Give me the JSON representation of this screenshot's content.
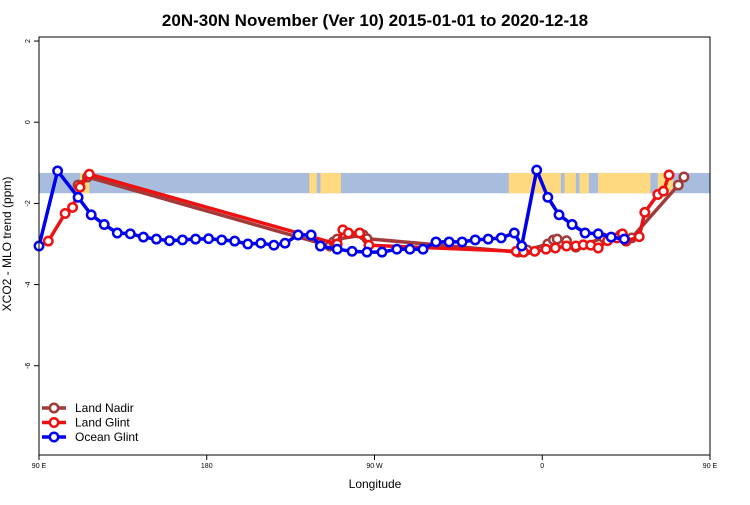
{
  "chart_data": {
    "type": "line",
    "title": "20N-30N November (Ver 10)   2015-01-01 to 2020-12-18",
    "xlabel": "Longitude",
    "ylabel": "XCO2 - MLO trend (ppm)",
    "xlim": [
      90,
      450
    ],
    "ylim": [
      -8.2,
      2.1
    ],
    "xticks": [
      {
        "value": 90,
        "label": "90 E"
      },
      {
        "value": 180,
        "label": "180"
      },
      {
        "value": 270,
        "label": "90 W"
      },
      {
        "value": 360,
        "label": "0"
      },
      {
        "value": 450,
        "label": "90 E"
      },
      {
        "value": 540,
        "label": "180"
      }
    ],
    "yticks": [
      {
        "value": 2,
        "label": "2"
      },
      {
        "value": 0,
        "label": "0"
      },
      {
        "value": -2,
        "label": "-2"
      },
      {
        "value": -4,
        "label": "-4"
      },
      {
        "value": -6,
        "label": "-6"
      }
    ],
    "map_band": {
      "ymin": -1.75,
      "ymax": -1.25,
      "ocean_color": "#a8bddd",
      "land_color": "#ffd980",
      "land_segments": [
        [
          112,
          117
        ],
        [
          235,
          239
        ],
        [
          241,
          252
        ],
        [
          342,
          370
        ],
        [
          372,
          378
        ],
        [
          380,
          385
        ],
        [
          390,
          418
        ],
        [
          422,
          430
        ]
      ]
    },
    "series": [
      {
        "name": "Land Nadir",
        "color": "#a33a3a",
        "points": [
          [
            111,
            -1.55
          ],
          [
            116,
            -1.35
          ],
          [
            246,
            -3.05
          ],
          [
            248,
            -2.95
          ],
          [
            250,
            -2.88
          ],
          [
            264,
            -2.78
          ],
          [
            266,
            -2.87
          ],
          [
            347,
            -3.2
          ],
          [
            352,
            -3.15
          ],
          [
            363,
            -3.0
          ],
          [
            366,
            -2.9
          ],
          [
            368,
            -2.88
          ],
          [
            373,
            -2.92
          ],
          [
            378,
            -3.08
          ],
          [
            393,
            -2.85
          ],
          [
            402,
            -2.78
          ],
          [
            405,
            -2.9
          ],
          [
            408,
            -2.85
          ],
          [
            433,
            -1.55
          ],
          [
            436,
            -1.35
          ]
        ]
      },
      {
        "name": "Land Glint",
        "color": "#ee1111",
        "points": [
          [
            95,
            -2.93
          ],
          [
            104,
            -2.25
          ],
          [
            108,
            -2.1
          ],
          [
            112,
            -1.6
          ],
          [
            117,
            -1.28
          ],
          [
            250,
            -3.0
          ],
          [
            253,
            -2.65
          ],
          [
            256,
            -2.73
          ],
          [
            262,
            -2.73
          ],
          [
            267,
            -3.03
          ],
          [
            346,
            -3.18
          ],
          [
            350,
            -3.2
          ],
          [
            356,
            -3.18
          ],
          [
            362,
            -3.13
          ],
          [
            367,
            -3.1
          ],
          [
            373,
            -3.05
          ],
          [
            378,
            -3.05
          ],
          [
            382,
            -3.02
          ],
          [
            386,
            -3.03
          ],
          [
            390,
            -3.1
          ],
          [
            395,
            -2.92
          ],
          [
            400,
            -2.85
          ],
          [
            403,
            -2.75
          ],
          [
            405,
            -2.93
          ],
          [
            412,
            -2.82
          ],
          [
            415,
            -2.22
          ],
          [
            422,
            -1.78
          ],
          [
            425,
            -1.7
          ],
          [
            428,
            -1.3
          ]
        ]
      },
      {
        "name": "Ocean Glint",
        "color": "#0000ee",
        "points": [
          [
            90,
            -3.05
          ],
          [
            100,
            -1.2
          ],
          [
            111,
            -1.85
          ],
          [
            118,
            -2.28
          ],
          [
            125,
            -2.52
          ],
          [
            132,
            -2.73
          ],
          [
            139,
            -2.75
          ],
          [
            146,
            -2.83
          ],
          [
            153,
            -2.88
          ],
          [
            160,
            -2.92
          ],
          [
            167,
            -2.9
          ],
          [
            174,
            -2.88
          ],
          [
            181,
            -2.87
          ],
          [
            188,
            -2.9
          ],
          [
            195,
            -2.93
          ],
          [
            202,
            -3.0
          ],
          [
            209,
            -2.98
          ],
          [
            216,
            -3.03
          ],
          [
            222,
            -2.98
          ],
          [
            229,
            -2.78
          ],
          [
            236,
            -2.78
          ],
          [
            241,
            -3.05
          ],
          [
            250,
            -3.13
          ],
          [
            258,
            -3.18
          ],
          [
            266,
            -3.2
          ],
          [
            274,
            -3.2
          ],
          [
            282,
            -3.13
          ],
          [
            289,
            -3.13
          ],
          [
            296,
            -3.13
          ],
          [
            303,
            -2.95
          ],
          [
            310,
            -2.95
          ],
          [
            317,
            -2.95
          ],
          [
            324,
            -2.9
          ],
          [
            331,
            -2.88
          ],
          [
            338,
            -2.85
          ],
          [
            345,
            -2.73
          ],
          [
            349,
            -3.05
          ],
          [
            357,
            -1.18
          ],
          [
            363,
            -1.85
          ],
          [
            369,
            -2.28
          ],
          [
            376,
            -2.52
          ],
          [
            383,
            -2.73
          ],
          [
            390,
            -2.75
          ],
          [
            397,
            -2.83
          ],
          [
            404,
            -2.88
          ]
        ]
      }
    ],
    "legend_position": "bottom-left"
  }
}
